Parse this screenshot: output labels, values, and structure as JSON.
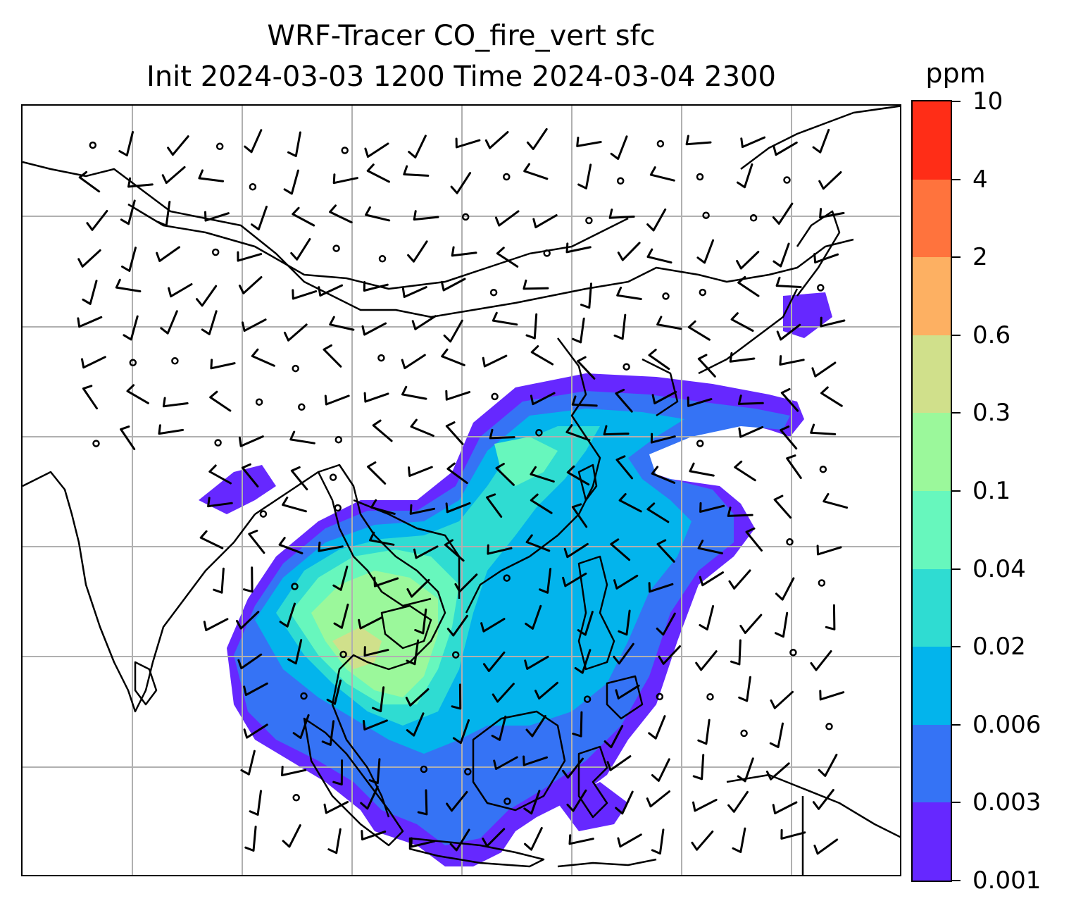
{
  "title": {
    "line1": "WRF-Tracer CO_fire_vert sfc",
    "line2": "Init 2024-03-03 1200 Time 2024-03-04 2300"
  },
  "colorbar": {
    "unit": "ppm",
    "ticks": [
      "0.001",
      "0.003",
      "0.006",
      "0.02",
      "0.04",
      "0.1",
      "0.3",
      "0.6",
      "2",
      "4",
      "10"
    ],
    "colors": [
      "#6628ff",
      "#3573f5",
      "#03b4ec",
      "#2fdcd2",
      "#67f7bd",
      "#9bf89b",
      "#d0e08b",
      "#fdb062",
      "#ff733d",
      "#ff2d17"
    ]
  },
  "map": {
    "region": "South and Southeast Asia",
    "gridlines": true,
    "coastline_color": "#000000",
    "gridline_color": "#b0b0b0",
    "wind_barb_color": "#000000"
  }
}
